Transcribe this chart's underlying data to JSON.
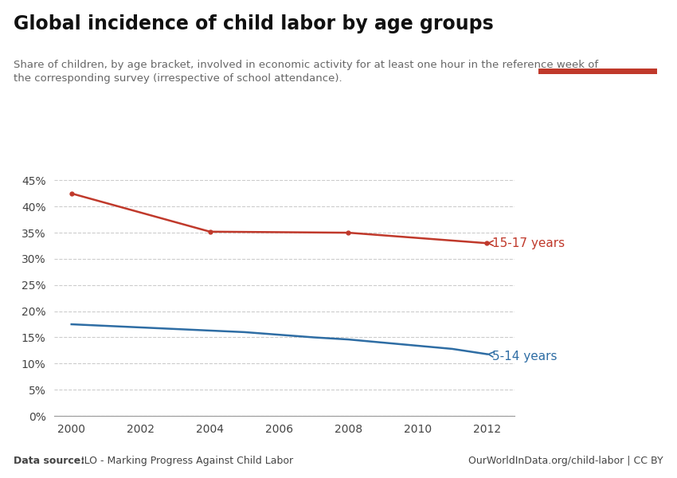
{
  "title": "Global incidence of child labor by age groups",
  "subtitle": "Share of children, by age bracket, involved in economic activity for at least one hour in the reference week of\nthe corresponding survey (irrespective of school attendance).",
  "source_left": "Data source: ILO - Marking Progress Against Child Labor",
  "source_right": "OurWorldInData.org/child-labor | CC BY",
  "years_15_17": [
    2000,
    2004,
    2008,
    2012
  ],
  "values_15_17": [
    0.425,
    0.352,
    0.35,
    0.33
  ],
  "years_5_14": [
    2000,
    2001,
    2002,
    2003,
    2004,
    2005,
    2006,
    2007,
    2008,
    2009,
    2010,
    2011,
    2012
  ],
  "values_5_14": [
    0.175,
    0.172,
    0.169,
    0.166,
    0.163,
    0.16,
    0.155,
    0.15,
    0.146,
    0.14,
    0.134,
    0.128,
    0.118
  ],
  "color_15_17": "#c0392b",
  "color_5_14": "#2e6da4",
  "label_15_17": "15-17 years",
  "label_5_14": "5-14 years",
  "ylim": [
    0,
    0.475
  ],
  "yticks": [
    0,
    0.05,
    0.1,
    0.15,
    0.2,
    0.25,
    0.3,
    0.35,
    0.4,
    0.45
  ],
  "xticks": [
    2000,
    2002,
    2004,
    2006,
    2008,
    2010,
    2012
  ],
  "xlim": [
    1999.5,
    2012.8
  ],
  "background_color": "#ffffff",
  "grid_color": "#cccccc",
  "owid_box_color": "#1a2e4a",
  "owid_red": "#c0392b",
  "source_bold": "Data source:"
}
